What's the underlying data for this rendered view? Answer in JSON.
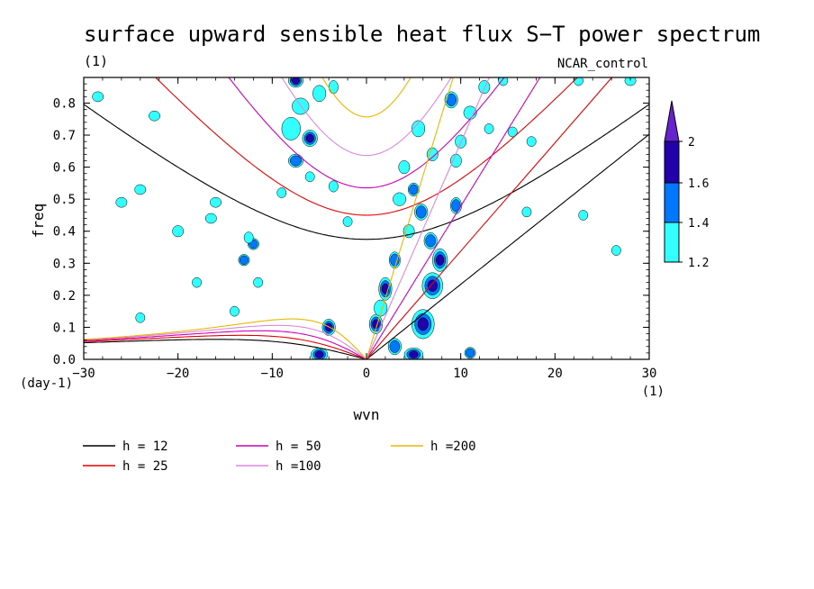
{
  "chart_data": {
    "type": "contour",
    "title": "surface upward sensible heat flux S−T power spectrum",
    "subtitle_left": "(1)",
    "subtitle_right": "NCAR_control",
    "xlabel": "wvn",
    "ylabel": "freq",
    "x_unit": "(1)",
    "y_unit": "(day-1)",
    "xlim": [
      -30,
      30
    ],
    "ylim": [
      0,
      0.88
    ],
    "x_ticks": [
      -30,
      -20,
      -10,
      0,
      10,
      20,
      30
    ],
    "x_tick_labels": [
      "−30",
      "−20",
      "−10",
      "0",
      "10",
      "20",
      "30"
    ],
    "y_ticks": [
      0.0,
      0.1,
      0.2,
      0.3,
      0.4,
      0.5,
      0.6,
      0.7,
      0.8
    ],
    "y_tick_labels": [
      "0.0",
      "0.1",
      "0.2",
      "0.3",
      "0.4",
      "0.5",
      "0.6",
      "0.7",
      "0.8"
    ],
    "colorbar": {
      "levels": [
        1.2,
        1.4,
        1.6,
        2
      ],
      "level_labels": [
        "1.2",
        "1.4",
        "1.6",
        "2"
      ],
      "colors": [
        "#33ffff",
        "#0077ff",
        "#2200aa",
        "#6622cc"
      ]
    },
    "dispersion_curves": [
      {
        "name": "h = 12",
        "h": 12,
        "color": "#000000"
      },
      {
        "name": "h = 25",
        "h": 25,
        "color": "#e60000"
      },
      {
        "name": "h = 50",
        "h": 50,
        "color": "#cc00bb"
      },
      {
        "name": "h =100",
        "h": 100,
        "color": "#dd88dd"
      },
      {
        "name": "h =200",
        "h": 200,
        "color": "#e6b800"
      }
    ],
    "blobs": [
      {
        "x": -7.5,
        "y": 0.87,
        "rx": 0.6,
        "ry": 0.015,
        "level": 3
      },
      {
        "x": -6.0,
        "y": 0.69,
        "rx": 0.6,
        "ry": 0.02,
        "level": 3
      },
      {
        "x": -7.5,
        "y": 0.62,
        "rx": 0.6,
        "ry": 0.015,
        "level": 2
      },
      {
        "x": -4.0,
        "y": 0.1,
        "rx": 0.5,
        "ry": 0.02,
        "level": 3
      },
      {
        "x": -5.0,
        "y": 0.015,
        "rx": 0.7,
        "ry": 0.015,
        "level": 3
      },
      {
        "x": 1.0,
        "y": 0.11,
        "rx": 0.5,
        "ry": 0.025,
        "level": 3
      },
      {
        "x": 2.0,
        "y": 0.22,
        "rx": 0.5,
        "ry": 0.03,
        "level": 3
      },
      {
        "x": 3.0,
        "y": 0.31,
        "rx": 0.4,
        "ry": 0.02,
        "level": 2
      },
      {
        "x": 6.0,
        "y": 0.11,
        "rx": 1.0,
        "ry": 0.04,
        "level": 3
      },
      {
        "x": 5.0,
        "y": 0.015,
        "rx": 0.8,
        "ry": 0.015,
        "level": 3
      },
      {
        "x": 7.0,
        "y": 0.23,
        "rx": 0.9,
        "ry": 0.035,
        "level": 3
      },
      {
        "x": 7.8,
        "y": 0.31,
        "rx": 0.6,
        "ry": 0.03,
        "level": 3
      },
      {
        "x": 6.8,
        "y": 0.37,
        "rx": 0.5,
        "ry": 0.02,
        "level": 2
      },
      {
        "x": 5.8,
        "y": 0.46,
        "rx": 0.5,
        "ry": 0.02,
        "level": 2
      },
      {
        "x": 9.5,
        "y": 0.48,
        "rx": 0.4,
        "ry": 0.02,
        "level": 2
      },
      {
        "x": 5.0,
        "y": 0.53,
        "rx": 0.4,
        "ry": 0.015,
        "level": 2
      },
      {
        "x": 9.0,
        "y": 0.81,
        "rx": 0.5,
        "ry": 0.02,
        "level": 2
      },
      {
        "x": 3.0,
        "y": 0.04,
        "rx": 0.5,
        "ry": 0.02,
        "level": 2
      },
      {
        "x": -13.0,
        "y": 0.31,
        "rx": 0.4,
        "ry": 0.012,
        "level": 2
      },
      {
        "x": -12.0,
        "y": 0.36,
        "rx": 0.4,
        "ry": 0.012,
        "level": 2
      },
      {
        "x": 11.0,
        "y": 0.02,
        "rx": 0.4,
        "ry": 0.012,
        "level": 2
      },
      {
        "x": 1.5,
        "y": 0.16,
        "rx": 0.5,
        "ry": 0.02,
        "level": 1
      },
      {
        "x": -8.0,
        "y": 0.72,
        "rx": 0.8,
        "ry": 0.03,
        "level": 1
      },
      {
        "x": -7.0,
        "y": 0.79,
        "rx": 0.7,
        "ry": 0.02,
        "level": 1
      },
      {
        "x": -5.0,
        "y": 0.83,
        "rx": 0.5,
        "ry": 0.02,
        "level": 1
      },
      {
        "x": -3.5,
        "y": 0.85,
        "rx": 0.3,
        "ry": 0.015,
        "level": 1
      },
      {
        "x": 5.5,
        "y": 0.72,
        "rx": 0.5,
        "ry": 0.02,
        "level": 1
      },
      {
        "x": 7.0,
        "y": 0.64,
        "rx": 0.4,
        "ry": 0.015,
        "level": 1
      },
      {
        "x": 9.5,
        "y": 0.62,
        "rx": 0.4,
        "ry": 0.015,
        "level": 1
      },
      {
        "x": 4.0,
        "y": 0.6,
        "rx": 0.4,
        "ry": 0.015,
        "level": 1
      },
      {
        "x": 11.0,
        "y": 0.77,
        "rx": 0.5,
        "ry": 0.015,
        "level": 1
      },
      {
        "x": 12.5,
        "y": 0.85,
        "rx": 0.4,
        "ry": 0.015,
        "level": 1
      },
      {
        "x": 10.0,
        "y": 0.68,
        "rx": 0.4,
        "ry": 0.015,
        "level": 1
      },
      {
        "x": 3.5,
        "y": 0.5,
        "rx": 0.5,
        "ry": 0.015,
        "level": 1
      },
      {
        "x": 4.5,
        "y": 0.4,
        "rx": 0.4,
        "ry": 0.015,
        "level": 1
      },
      {
        "x": -3.5,
        "y": 0.54,
        "rx": 0.3,
        "ry": 0.012,
        "level": 1
      },
      {
        "x": -12.5,
        "y": 0.38,
        "rx": 0.3,
        "ry": 0.012,
        "level": 1
      },
      {
        "x": -20.0,
        "y": 0.4,
        "rx": 0.4,
        "ry": 0.012,
        "level": 1
      },
      {
        "x": -16.5,
        "y": 0.44,
        "rx": 0.4,
        "ry": 0.01,
        "level": 1
      },
      {
        "x": -24.0,
        "y": 0.53,
        "rx": 0.4,
        "ry": 0.01,
        "level": 1
      },
      {
        "x": -26.0,
        "y": 0.49,
        "rx": 0.4,
        "ry": 0.01,
        "level": 1
      },
      {
        "x": -28.5,
        "y": 0.82,
        "rx": 0.4,
        "ry": 0.01,
        "level": 1
      },
      {
        "x": -22.5,
        "y": 0.76,
        "rx": 0.4,
        "ry": 0.01,
        "level": 1
      },
      {
        "x": -18.0,
        "y": 0.24,
        "rx": 0.3,
        "ry": 0.01,
        "level": 1
      },
      {
        "x": -14.0,
        "y": 0.15,
        "rx": 0.3,
        "ry": 0.01,
        "level": 1
      },
      {
        "x": -11.5,
        "y": 0.24,
        "rx": 0.3,
        "ry": 0.01,
        "level": 1
      },
      {
        "x": -24.0,
        "y": 0.13,
        "rx": 0.3,
        "ry": 0.01,
        "level": 1
      },
      {
        "x": -16.0,
        "y": 0.49,
        "rx": 0.4,
        "ry": 0.01,
        "level": 1
      },
      {
        "x": 17.5,
        "y": 0.68,
        "rx": 0.3,
        "ry": 0.01,
        "level": 1
      },
      {
        "x": 23.0,
        "y": 0.45,
        "rx": 0.3,
        "ry": 0.01,
        "level": 1
      },
      {
        "x": 26.5,
        "y": 0.34,
        "rx": 0.3,
        "ry": 0.01,
        "level": 1
      },
      {
        "x": 28.0,
        "y": 0.87,
        "rx": 0.4,
        "ry": 0.01,
        "level": 1
      },
      {
        "x": 22.5,
        "y": 0.87,
        "rx": 0.3,
        "ry": 0.01,
        "level": 1
      },
      {
        "x": 14.5,
        "y": 0.87,
        "rx": 0.3,
        "ry": 0.01,
        "level": 1
      },
      {
        "x": 15.5,
        "y": 0.71,
        "rx": 0.3,
        "ry": 0.01,
        "level": 1
      },
      {
        "x": 13.0,
        "y": 0.72,
        "rx": 0.3,
        "ry": 0.01,
        "level": 1
      },
      {
        "x": 17.0,
        "y": 0.46,
        "rx": 0.3,
        "ry": 0.01,
        "level": 1
      },
      {
        "x": -2.0,
        "y": 0.43,
        "rx": 0.3,
        "ry": 0.01,
        "level": 1
      },
      {
        "x": -9.0,
        "y": 0.52,
        "rx": 0.3,
        "ry": 0.01,
        "level": 1
      },
      {
        "x": -6.0,
        "y": 0.57,
        "rx": 0.3,
        "ry": 0.01,
        "level": 1
      }
    ]
  }
}
